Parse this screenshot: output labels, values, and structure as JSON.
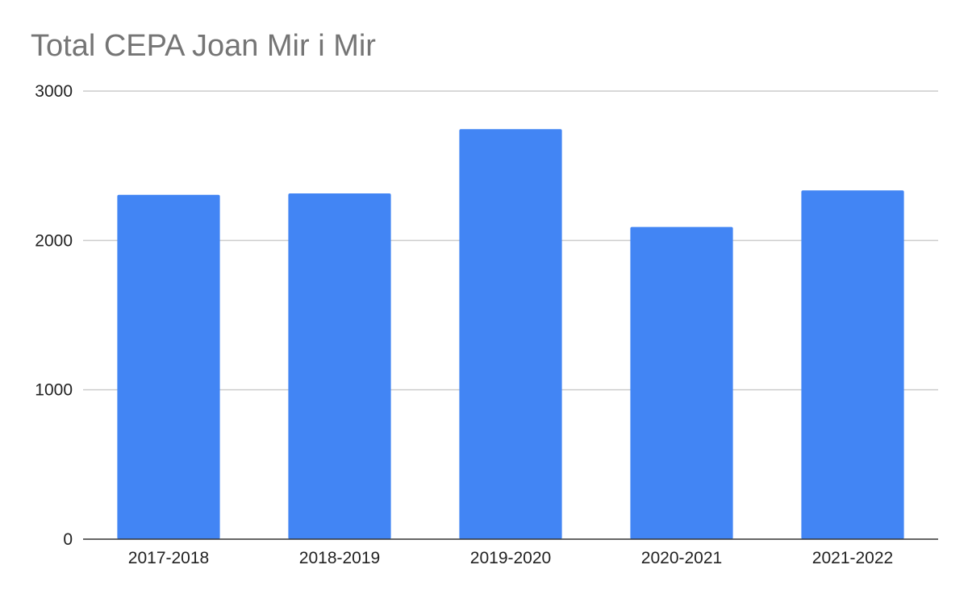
{
  "chart_data": {
    "type": "bar",
    "title": "Total CEPA Joan Mir i Mir",
    "categories": [
      "2017-2018",
      "2018-2019",
      "2019-2020",
      "2020-2021",
      "2021-2022"
    ],
    "values": [
      2305,
      2315,
      2745,
      2090,
      2335
    ],
    "ylim": [
      0,
      3000
    ],
    "yticks": [
      0,
      1000,
      2000,
      3000
    ],
    "bar_color": "#4285f4",
    "grid": true,
    "legend": "none"
  }
}
